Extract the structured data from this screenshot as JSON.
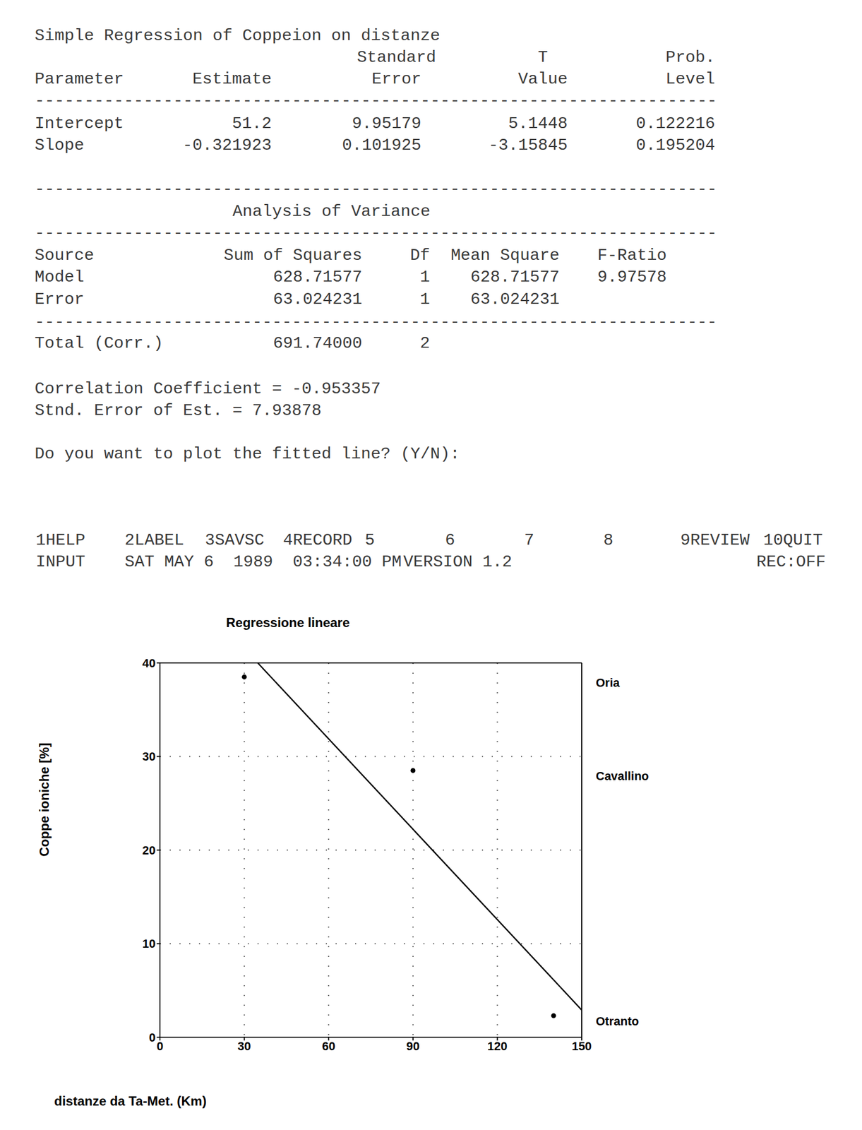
{
  "output": {
    "title": "Simple Regression of Coppeion on distanze",
    "separator": "---------------------------------------------------------------------",
    "parameters": {
      "header": [
        [
          null,
          null,
          "Standard",
          "T",
          "Prob."
        ],
        [
          "Parameter",
          "Estimate",
          "Error",
          "Value",
          "Level"
        ]
      ],
      "rows": [
        [
          "Intercept",
          "51.2",
          "9.95179",
          "5.1448",
          "0.122216"
        ],
        [
          "Slope",
          "-0.321923",
          "0.101925",
          "-3.15845",
          "0.195204"
        ]
      ]
    },
    "anova": {
      "title": "Analysis of Variance",
      "header": [
        "Source",
        "Sum of Squares",
        "Df",
        "Mean Square",
        "F-Ratio"
      ],
      "rows": [
        [
          "Model",
          "628.71577",
          "1",
          "628.71577",
          "9.97578"
        ],
        [
          "Error",
          "63.024231",
          "1",
          "63.024231"
        ]
      ],
      "total": [
        "Total (Corr.)",
        "691.74000",
        "2"
      ]
    },
    "statistics": [
      "Correlation Coefficient = -0.953357",
      "Stnd. Error of Est. = 7.93878"
    ],
    "prompt": "Do you want to plot the fitted line? (Y/N):",
    "function_keys": [
      "1HELP",
      "2LABEL",
      "3SAVSC",
      "4RECORD",
      "5",
      "6",
      "7",
      "8",
      "9REVIEW",
      "10QUIT"
    ],
    "status_bar": [
      "INPUT",
      "SAT MAY 6  1989  03:34:00 PM",
      "VERSION 1.2",
      "REC:OFF"
    ]
  },
  "chart_data": {
    "type": "scatter",
    "title": "Regressione lineare",
    "x_label": "distanze da Ta-Met. (Km)",
    "y_label": "Coppe ioniche [%]",
    "x": [
      30,
      90,
      140
    ],
    "values": [
      38.5,
      28.5,
      2.3
    ],
    "point_labels": [
      "Oria",
      "Cavallino",
      "Otranto"
    ],
    "color": "#000000",
    "marker": "circle",
    "fit": {
      "intercept": 51.2,
      "slope": -0.321923
    },
    "xlim": [
      0,
      150
    ],
    "ylim": [
      0,
      40
    ],
    "xticks": [
      0,
      30,
      60,
      90,
      120,
      150
    ],
    "yticks": [
      0,
      10,
      20,
      30,
      40
    ],
    "grid": true
  }
}
